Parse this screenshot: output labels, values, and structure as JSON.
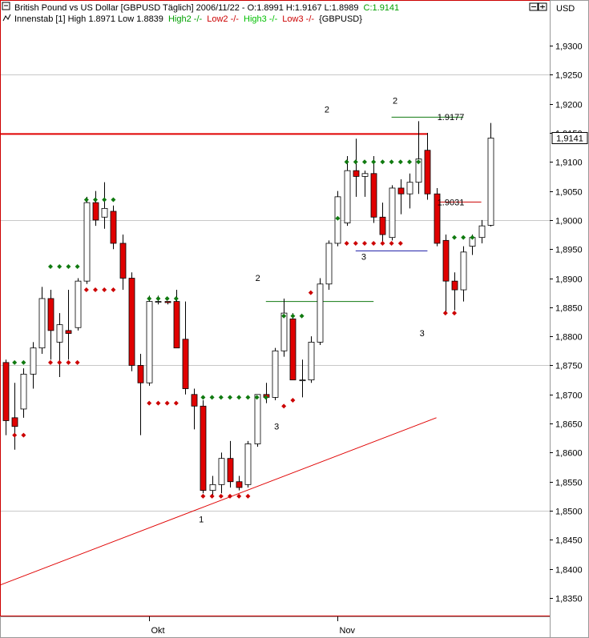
{
  "header": {
    "line1_prefix": "British Pound vs US Dollar [GBPUSD  Täglich] 2006/11/22 - O:1.8991 H:1.9167 L:1.8989",
    "line1_close": "C:1.9141",
    "indicator_name": "Innenstab [1] High 1.8971 Low 1.8839",
    "high2": "High2 -/-",
    "low2": "Low2 -/-",
    "high3": "High3 -/-",
    "low3": "Low3 -/-",
    "symbol": "{GBPUSD}",
    "currency": "USD"
  },
  "colors": {
    "up_body": "#ffffff",
    "down_body": "#e00000",
    "wick": "#000000",
    "high_marker": "#107a10",
    "low_marker": "#cc0000",
    "label_blue": "#1a1aa6",
    "resistance": "#e00000",
    "trendline": "#e00000",
    "grid": "#c8c8c8",
    "border": "#cc0000",
    "close_color": "#00a000"
  },
  "chart_data": {
    "type": "candlestick",
    "title": "British Pound vs US Dollar [GBPUSD  Täglich]",
    "ylim": [
      1.83,
      1.935
    ],
    "y_ticks": [
      "1,9300",
      "1,9250",
      "1,9200",
      "1,9150",
      "1,9100",
      "1,9050",
      "1,9000",
      "1,8950",
      "1,8900",
      "1,8850",
      "1,8800",
      "1,8750",
      "1,8700",
      "1,8650",
      "1,8600",
      "1,8550",
      "1,8500",
      "1,8450",
      "1,8400",
      "1,8350"
    ],
    "y_tick_values": [
      1.93,
      1.925,
      1.92,
      1.915,
      1.91,
      1.905,
      1.9,
      1.895,
      1.89,
      1.885,
      1.88,
      1.875,
      1.87,
      1.865,
      1.86,
      1.855,
      1.85,
      1.845,
      1.84,
      1.835
    ],
    "x_labels": [
      {
        "label": "Okt",
        "index": 16
      },
      {
        "label": "Nov",
        "index": 37
      }
    ],
    "last_price_label": "1,9141",
    "last_price": 1.9141,
    "candles": [
      {
        "o": 1.8755,
        "h": 1.876,
        "l": 1.863,
        "c": 1.8655
      },
      {
        "o": 1.866,
        "h": 1.872,
        "l": 1.8605,
        "c": 1.8645
      },
      {
        "o": 1.8675,
        "h": 1.8745,
        "l": 1.866,
        "c": 1.8735
      },
      {
        "o": 1.8735,
        "h": 1.879,
        "l": 1.871,
        "c": 1.878
      },
      {
        "o": 1.878,
        "h": 1.8885,
        "l": 1.877,
        "c": 1.8865
      },
      {
        "o": 1.8865,
        "h": 1.888,
        "l": 1.876,
        "c": 1.881
      },
      {
        "o": 1.879,
        "h": 1.884,
        "l": 1.873,
        "c": 1.882
      },
      {
        "o": 1.881,
        "h": 1.888,
        "l": 1.876,
        "c": 1.8805
      },
      {
        "o": 1.8815,
        "h": 1.89,
        "l": 1.881,
        "c": 1.8895
      },
      {
        "o": 1.8895,
        "h": 1.904,
        "l": 1.889,
        "c": 1.903
      },
      {
        "o": 1.903,
        "h": 1.905,
        "l": 1.899,
        "c": 1.9
      },
      {
        "o": 1.9005,
        "h": 1.9065,
        "l": 1.8985,
        "c": 1.902
      },
      {
        "o": 1.9015,
        "h": 1.9025,
        "l": 1.895,
        "c": 1.896
      },
      {
        "o": 1.896,
        "h": 1.8975,
        "l": 1.888,
        "c": 1.89
      },
      {
        "o": 1.89,
        "h": 1.891,
        "l": 1.874,
        "c": 1.875
      },
      {
        "o": 1.875,
        "h": 1.877,
        "l": 1.863,
        "c": 1.872
      },
      {
        "o": 1.872,
        "h": 1.887,
        "l": 1.8715,
        "c": 1.886
      },
      {
        "o": 1.886,
        "h": 1.887,
        "l": 1.8855,
        "c": 1.886
      },
      {
        "o": 1.886,
        "h": 1.886,
        "l": 1.8855,
        "c": 1.8858
      },
      {
        "o": 1.886,
        "h": 1.888,
        "l": 1.878,
        "c": 1.878
      },
      {
        "o": 1.8795,
        "h": 1.886,
        "l": 1.87,
        "c": 1.871
      },
      {
        "o": 1.87,
        "h": 1.871,
        "l": 1.864,
        "c": 1.868
      },
      {
        "o": 1.868,
        "h": 1.869,
        "l": 1.853,
        "c": 1.8535
      },
      {
        "o": 1.8535,
        "h": 1.856,
        "l": 1.8525,
        "c": 1.8545
      },
      {
        "o": 1.8545,
        "h": 1.86,
        "l": 1.853,
        "c": 1.859
      },
      {
        "o": 1.859,
        "h": 1.862,
        "l": 1.854,
        "c": 1.855
      },
      {
        "o": 1.855,
        "h": 1.856,
        "l": 1.8535,
        "c": 1.854
      },
      {
        "o": 1.8545,
        "h": 1.862,
        "l": 1.854,
        "c": 1.8615
      },
      {
        "o": 1.8615,
        "h": 1.87,
        "l": 1.861,
        "c": 1.87
      },
      {
        "o": 1.87,
        "h": 1.872,
        "l": 1.8685,
        "c": 1.8695
      },
      {
        "o": 1.8695,
        "h": 1.878,
        "l": 1.869,
        "c": 1.8775
      },
      {
        "o": 1.8775,
        "h": 1.8865,
        "l": 1.8765,
        "c": 1.884
      },
      {
        "o": 1.883,
        "h": 1.884,
        "l": 1.8725,
        "c": 1.8725
      },
      {
        "o": 1.8725,
        "h": 1.876,
        "l": 1.8695,
        "c": 1.8725
      },
      {
        "o": 1.8725,
        "h": 1.88,
        "l": 1.872,
        "c": 1.879
      },
      {
        "o": 1.879,
        "h": 1.89,
        "l": 1.8785,
        "c": 1.889
      },
      {
        "o": 1.889,
        "h": 1.8965,
        "l": 1.888,
        "c": 1.896
      },
      {
        "o": 1.896,
        "h": 1.905,
        "l": 1.8955,
        "c": 1.904
      },
      {
        "o": 1.8995,
        "h": 1.911,
        "l": 1.899,
        "c": 1.9085
      },
      {
        "o": 1.9085,
        "h": 1.914,
        "l": 1.904,
        "c": 1.9075
      },
      {
        "o": 1.9075,
        "h": 1.9085,
        "l": 1.904,
        "c": 1.908
      },
      {
        "o": 1.908,
        "h": 1.911,
        "l": 1.8995,
        "c": 1.9005
      },
      {
        "o": 1.9005,
        "h": 1.903,
        "l": 1.896,
        "c": 1.8975
      },
      {
        "o": 1.897,
        "h": 1.906,
        "l": 1.8965,
        "c": 1.9055
      },
      {
        "o": 1.9055,
        "h": 1.907,
        "l": 1.901,
        "c": 1.9045
      },
      {
        "o": 1.9045,
        "h": 1.908,
        "l": 1.902,
        "c": 1.9065
      },
      {
        "o": 1.9065,
        "h": 1.917,
        "l": 1.9045,
        "c": 1.9105
      },
      {
        "o": 1.912,
        "h": 1.915,
        "l": 1.9035,
        "c": 1.9045
      },
      {
        "o": 1.9045,
        "h": 1.9055,
        "l": 1.8955,
        "c": 1.896
      },
      {
        "o": 1.8965,
        "h": 1.8975,
        "l": 1.884,
        "c": 1.8895
      },
      {
        "o": 1.8895,
        "h": 1.891,
        "l": 1.8845,
        "c": 1.888
      },
      {
        "o": 1.888,
        "h": 1.8955,
        "l": 1.886,
        "c": 1.8945
      },
      {
        "o": 1.8955,
        "h": 1.8975,
        "l": 1.894,
        "c": 1.897
      },
      {
        "o": 1.897,
        "h": 1.9,
        "l": 1.896,
        "c": 1.899
      },
      {
        "o": 1.8991,
        "h": 1.9167,
        "l": 1.8989,
        "c": 1.9141
      }
    ],
    "high_markers": [
      {
        "i": 1,
        "v": 1.8755
      },
      {
        "i": 2,
        "v": 1.8755
      },
      {
        "i": 5,
        "v": 1.892
      },
      {
        "i": 6,
        "v": 1.892
      },
      {
        "i": 7,
        "v": 1.892
      },
      {
        "i": 8,
        "v": 1.892
      },
      {
        "i": 9,
        "v": 1.9035
      },
      {
        "i": 10,
        "v": 1.9035
      },
      {
        "i": 11,
        "v": 1.9035
      },
      {
        "i": 12,
        "v": 1.9035
      },
      {
        "i": 16,
        "v": 1.8865
      },
      {
        "i": 17,
        "v": 1.8865
      },
      {
        "i": 18,
        "v": 1.8865
      },
      {
        "i": 19,
        "v": 1.8865
      },
      {
        "i": 22,
        "v": 1.8695
      },
      {
        "i": 23,
        "v": 1.8695
      },
      {
        "i": 24,
        "v": 1.8695
      },
      {
        "i": 25,
        "v": 1.8695
      },
      {
        "i": 26,
        "v": 1.8695
      },
      {
        "i": 27,
        "v": 1.8695
      },
      {
        "i": 28,
        "v": 1.8695
      },
      {
        "i": 29,
        "v": 1.8695
      },
      {
        "i": 31,
        "v": 1.8835
      },
      {
        "i": 32,
        "v": 1.8835
      },
      {
        "i": 33,
        "v": 1.8835
      },
      {
        "i": 37,
        "v": 1.9003
      },
      {
        "i": 38,
        "v": 1.91
      },
      {
        "i": 39,
        "v": 1.91
      },
      {
        "i": 40,
        "v": 1.91
      },
      {
        "i": 41,
        "v": 1.91
      },
      {
        "i": 42,
        "v": 1.91
      },
      {
        "i": 43,
        "v": 1.91
      },
      {
        "i": 44,
        "v": 1.91
      },
      {
        "i": 45,
        "v": 1.91
      },
      {
        "i": 46,
        "v": 1.91
      },
      {
        "i": 50,
        "v": 1.897
      },
      {
        "i": 51,
        "v": 1.897
      },
      {
        "i": 52,
        "v": 1.897
      }
    ],
    "low_markers": [
      {
        "i": 1,
        "v": 1.863
      },
      {
        "i": 2,
        "v": 1.863
      },
      {
        "i": 5,
        "v": 1.8755
      },
      {
        "i": 6,
        "v": 1.8755
      },
      {
        "i": 7,
        "v": 1.8755
      },
      {
        "i": 8,
        "v": 1.8755
      },
      {
        "i": 9,
        "v": 1.888
      },
      {
        "i": 10,
        "v": 1.888
      },
      {
        "i": 11,
        "v": 1.888
      },
      {
        "i": 12,
        "v": 1.888
      },
      {
        "i": 16,
        "v": 1.8685
      },
      {
        "i": 17,
        "v": 1.8685
      },
      {
        "i": 18,
        "v": 1.8685
      },
      {
        "i": 19,
        "v": 1.8685
      },
      {
        "i": 22,
        "v": 1.8525
      },
      {
        "i": 23,
        "v": 1.8525
      },
      {
        "i": 24,
        "v": 1.8525
      },
      {
        "i": 25,
        "v": 1.8525
      },
      {
        "i": 26,
        "v": 1.8525
      },
      {
        "i": 27,
        "v": 1.8525
      },
      {
        "i": 31,
        "v": 1.868
      },
      {
        "i": 32,
        "v": 1.869
      },
      {
        "i": 34,
        "v": 1.8875
      },
      {
        "i": 38,
        "v": 1.896
      },
      {
        "i": 39,
        "v": 1.896
      },
      {
        "i": 40,
        "v": 1.896
      },
      {
        "i": 41,
        "v": 1.896
      },
      {
        "i": 42,
        "v": 1.896
      },
      {
        "i": 43,
        "v": 1.896
      },
      {
        "i": 44,
        "v": 1.896
      },
      {
        "i": 49,
        "v": 1.884
      },
      {
        "i": 50,
        "v": 1.884
      }
    ],
    "lines": [
      {
        "name": "resistance-line",
        "from": {
          "i": -1,
          "v": 1.9148
        },
        "to": {
          "i": 47,
          "v": 1.9148
        },
        "color": "#e00000",
        "width": 2
      },
      {
        "name": "trendline",
        "from": {
          "i": -1,
          "v": 1.837
        },
        "to": {
          "i": 48,
          "v": 1.866
        },
        "color": "#e00000",
        "width": 1
      },
      {
        "name": "level-1-9177",
        "from": {
          "i": 43,
          "v": 1.9177
        },
        "to": {
          "i": 51,
          "v": 1.9177
        },
        "color": "#107a10",
        "width": 1
      },
      {
        "name": "level-1-9031",
        "from": {
          "i": 48,
          "v": 1.9031
        },
        "to": {
          "i": 53,
          "v": 1.9031
        },
        "color": "#cc0000",
        "width": 1
      },
      {
        "name": "level-1-8860",
        "from": {
          "i": 29,
          "v": 1.886
        },
        "to": {
          "i": 41,
          "v": 1.886
        },
        "color": "#107a10",
        "width": 1
      },
      {
        "name": "level-1-8947",
        "from": {
          "i": 39,
          "v": 1.8947
        },
        "to": {
          "i": 47,
          "v": 1.8947
        },
        "color": "#1a1aa6",
        "width": 1
      }
    ],
    "annotations": [
      {
        "text": "2",
        "i": 35.8,
        "v": 1.9185,
        "color": "#1a1aa6"
      },
      {
        "text": "2",
        "i": 43.4,
        "v": 1.92,
        "color": "#1a1aa6"
      },
      {
        "text": "2",
        "i": 28.1,
        "v": 1.8895,
        "color": "#1a1aa6"
      },
      {
        "text": "3",
        "i": 39.9,
        "v": 1.8932,
        "color": "#1a1aa6"
      },
      {
        "text": "3",
        "i": 30.2,
        "v": 1.864,
        "color": "#1a1aa6"
      },
      {
        "text": "3",
        "i": 46.4,
        "v": 1.88,
        "color": "#1a1aa6"
      },
      {
        "text": "1",
        "i": 21.8,
        "v": 1.848,
        "color": "#1a1aa6"
      },
      {
        "text": "1.9177",
        "i": 49.6,
        "v": 1.9172,
        "color": "#107a10"
      },
      {
        "text": "1.9031",
        "i": 49.6,
        "v": 1.9025,
        "color": "#cc0000"
      }
    ]
  }
}
